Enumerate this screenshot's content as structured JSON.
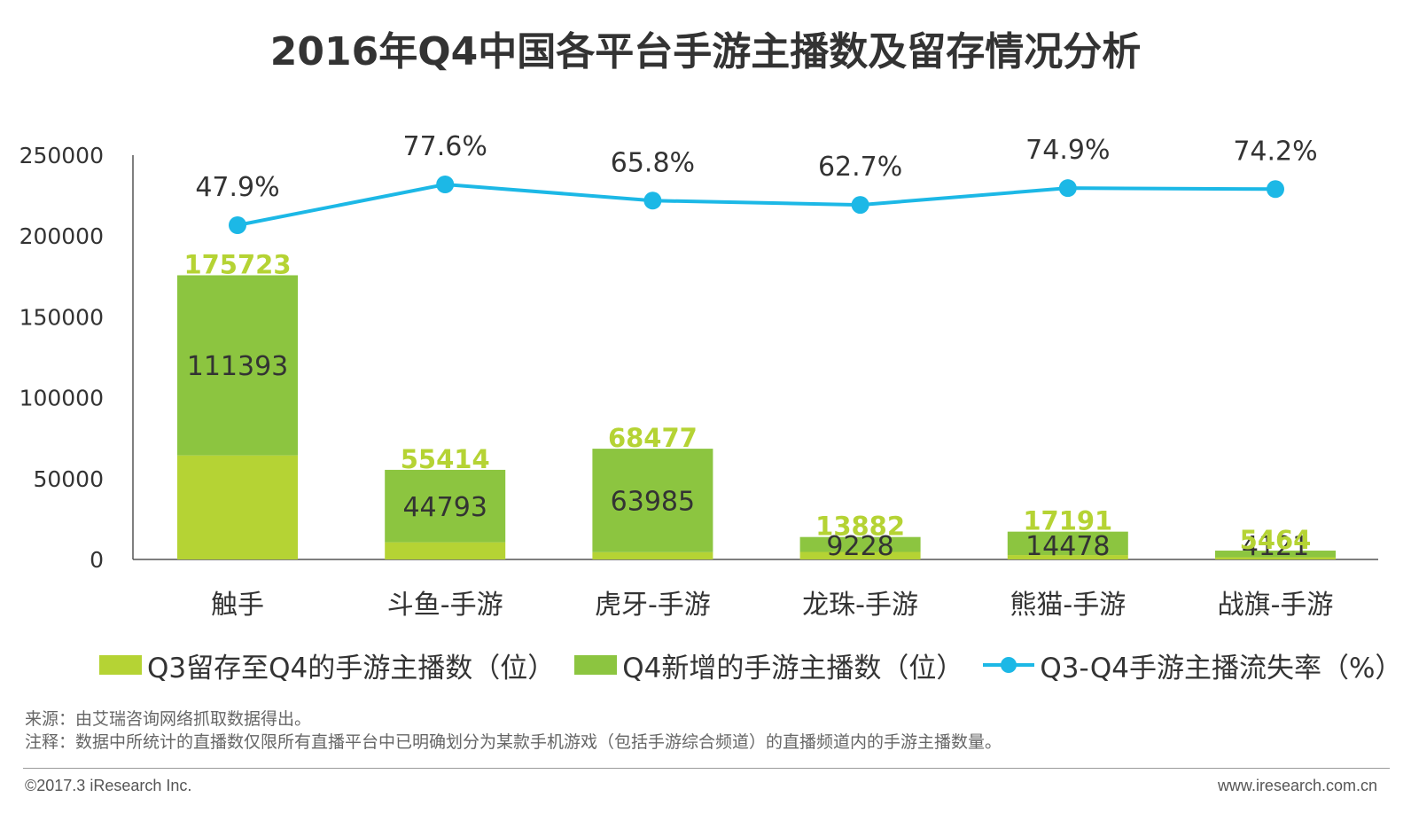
{
  "title": "2016年Q4中国各平台手游主播数及留存情况分析",
  "colors": {
    "retained": "#b5d334",
    "new": "#8cc540",
    "rate_line": "#1cb8e6",
    "total_label": "#b5d334",
    "axis": "#555555"
  },
  "legend": {
    "retained": "Q3留存至Q4的手游主播数（位）",
    "new": "Q4新增的手游主播数（位）",
    "rate": "Q3-Q4手游主播流失率（%）"
  },
  "notes": {
    "source": "来源：由艾瑞咨询网络抓取数据得出。",
    "remark": "注释：数据中所统计的直播数仅限所有直播平台中已明确划分为某款手机游戏（包括手游综合频道）的直播频道内的手游主播数量。"
  },
  "footer": {
    "copyright": "©2017.3 iResearch Inc.",
    "site": "www.iresearch.com.cn"
  },
  "chart_data": {
    "type": "bar",
    "stacked": true,
    "title": "2016年Q4中国各平台手游主播数及留存情况分析",
    "categories": [
      "触手",
      "斗鱼-手游",
      "虎牙-手游",
      "龙珠-手游",
      "熊猫-手游",
      "战旗-手游"
    ],
    "y_ticks": [
      "0",
      "50000",
      "100000",
      "150000",
      "200000",
      "250000"
    ],
    "ylim": [
      0,
      250000
    ],
    "grid": false,
    "legend_position": "bottom",
    "series": [
      {
        "name": "Q3留存至Q4的手游主播数（位）",
        "type": "bar",
        "values": [
          64330,
          10621,
          4492,
          4654,
          2713,
          1343
        ]
      },
      {
        "name": "Q4新增的手游主播数（位）",
        "type": "bar",
        "values": [
          111393,
          44793,
          63985,
          9228,
          14478,
          4121
        ]
      },
      {
        "name": "Q3-Q4手游主播流失率（%）",
        "type": "line",
        "values": [
          47.9,
          77.6,
          65.8,
          62.7,
          74.9,
          74.2
        ]
      }
    ],
    "totals": [
      175723,
      55414,
      68477,
      13882,
      17191,
      5464
    ],
    "inner_labels": [
      "111393",
      "44793",
      "63985",
      "9228",
      "14478",
      "4121"
    ],
    "total_labels": [
      "175723",
      "55414",
      "68477",
      "13882",
      "17191",
      "5464"
    ],
    "rate_labels": [
      "47.9%",
      "77.6%",
      "65.8%",
      "62.7%",
      "74.9%",
      "74.2%"
    ]
  }
}
